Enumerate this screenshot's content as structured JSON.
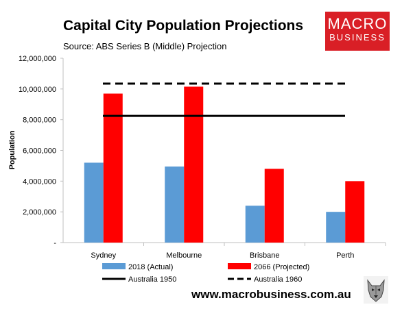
{
  "header": {
    "title": "Capital City Population Projections",
    "subtitle": "Source: ABS Series B (Middle) Projection"
  },
  "logo": {
    "line1": "MACRO",
    "line2": "BUSINESS",
    "color": "#d91f26"
  },
  "footer": {
    "url": "www.macrobusiness.com.au",
    "wolf_icon": "wolf-head-icon"
  },
  "chart_data": {
    "type": "bar",
    "categories": [
      "Sydney",
      "Melbourne",
      "Brisbane",
      "Perth"
    ],
    "series": [
      {
        "name": "2018 (Actual)",
        "values": [
          5200000,
          4950000,
          2400000,
          2000000
        ],
        "color": "#5b9bd5"
      },
      {
        "name": "2066 (Projected)",
        "values": [
          9700000,
          10150000,
          4800000,
          4000000
        ],
        "color": "#ff0000"
      }
    ],
    "reference_lines": [
      {
        "name": "Australia 1950",
        "value": 8250000,
        "style": "solid",
        "color": "#000000"
      },
      {
        "name": "Australia 1960",
        "value": 10350000,
        "style": "dashed",
        "color": "#000000"
      }
    ],
    "ylabel": "Population",
    "xlabel": "",
    "ylim": [
      0,
      12000000
    ],
    "yticks": [
      0,
      2000000,
      4000000,
      6000000,
      8000000,
      10000000,
      12000000
    ],
    "ytick_labels": [
      "-",
      "2,000,000",
      "4,000,000",
      "6,000,000",
      "8,000,000",
      "10,000,000",
      "12,000,000"
    ],
    "grid": false,
    "legend_position": "bottom"
  }
}
